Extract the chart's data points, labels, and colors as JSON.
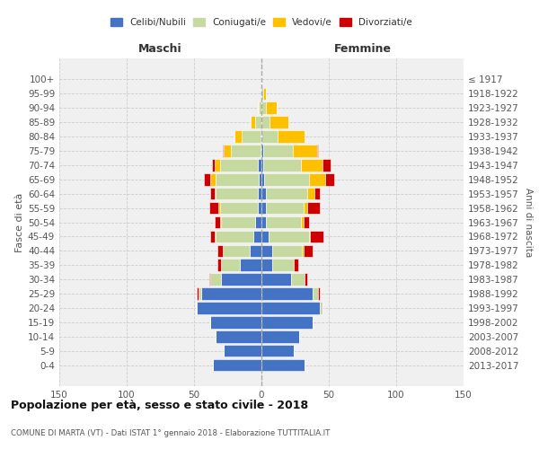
{
  "age_groups": [
    "0-4",
    "5-9",
    "10-14",
    "15-19",
    "20-24",
    "25-29",
    "30-34",
    "35-39",
    "40-44",
    "45-49",
    "50-54",
    "55-59",
    "60-64",
    "65-69",
    "70-74",
    "75-79",
    "80-84",
    "85-89",
    "90-94",
    "95-99",
    "100+"
  ],
  "birth_years": [
    "2013-2017",
    "2008-2012",
    "2003-2007",
    "1998-2002",
    "1993-1997",
    "1988-1992",
    "1983-1987",
    "1978-1982",
    "1973-1977",
    "1968-1972",
    "1963-1967",
    "1958-1962",
    "1953-1957",
    "1948-1952",
    "1943-1947",
    "1938-1942",
    "1933-1937",
    "1928-1932",
    "1923-1927",
    "1918-1922",
    "≤ 1917"
  ],
  "maschi": {
    "celibi": [
      36,
      28,
      34,
      38,
      48,
      45,
      30,
      16,
      9,
      6,
      5,
      3,
      3,
      2,
      3,
      1,
      1,
      0,
      0,
      0,
      0
    ],
    "coniugati": [
      0,
      0,
      0,
      0,
      1,
      2,
      8,
      14,
      20,
      28,
      25,
      28,
      31,
      32,
      28,
      22,
      14,
      5,
      2,
      0,
      0
    ],
    "vedovi": [
      0,
      0,
      0,
      0,
      0,
      0,
      0,
      0,
      0,
      1,
      1,
      1,
      1,
      4,
      4,
      5,
      5,
      3,
      1,
      0,
      0
    ],
    "divorziati": [
      0,
      0,
      0,
      0,
      0,
      1,
      1,
      3,
      4,
      3,
      4,
      7,
      3,
      5,
      2,
      1,
      0,
      0,
      0,
      0,
      0
    ]
  },
  "femmine": {
    "nubili": [
      32,
      24,
      28,
      38,
      43,
      38,
      22,
      8,
      8,
      5,
      3,
      3,
      3,
      2,
      1,
      1,
      0,
      0,
      0,
      0,
      0
    ],
    "coniugate": [
      0,
      0,
      0,
      0,
      2,
      4,
      10,
      16,
      22,
      30,
      26,
      28,
      31,
      33,
      28,
      22,
      12,
      6,
      3,
      1,
      0
    ],
    "vedove": [
      0,
      0,
      0,
      0,
      0,
      0,
      0,
      0,
      1,
      1,
      2,
      3,
      5,
      12,
      16,
      18,
      20,
      14,
      8,
      2,
      0
    ],
    "divorziate": [
      0,
      0,
      0,
      0,
      0,
      1,
      2,
      3,
      7,
      10,
      4,
      9,
      4,
      7,
      6,
      1,
      0,
      0,
      0,
      0,
      0
    ]
  },
  "colors": {
    "celibi": "#4472c4",
    "coniugati": "#c5d9a0",
    "vedovi": "#ffc000",
    "divorziati": "#cc0000"
  },
  "title": "Popolazione per età, sesso e stato civile - 2018",
  "subtitle": "COMUNE DI MARTA (VT) - Dati ISTAT 1° gennaio 2018 - Elaborazione TUTTITALIA.IT",
  "ylabel": "Fasce di età",
  "ylabel_right": "Anni di nascita",
  "xlabel_maschi": "Maschi",
  "xlabel_femmine": "Femmine",
  "xlim": 150,
  "legend_labels": [
    "Celibi/Nubili",
    "Coniugati/e",
    "Vedovi/e",
    "Divorziati/e"
  ],
  "background_color": "#f0f0f0"
}
